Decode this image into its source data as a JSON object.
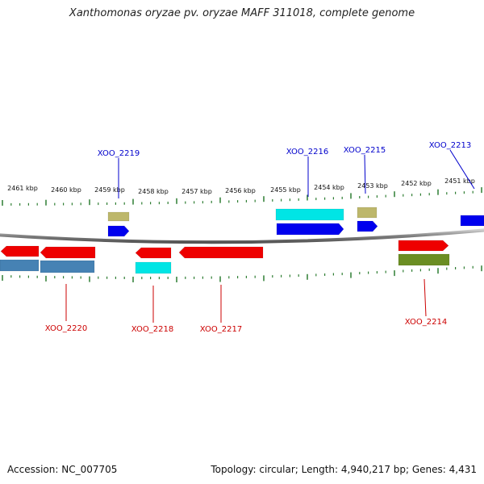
{
  "title": "Xanthomonas oryzae pv. oryzae MAFF 311018, complete genome",
  "footer": {
    "accession": "Accession: NC_007705",
    "summary": "Topology: circular; Length: 4,940,217 bp; Genes: 4,431"
  },
  "colors": {
    "backbone": "#7f7f7f",
    "tick": "#2e7d32",
    "upper_label": "#0000cc",
    "lower_label": "#cc0000"
  },
  "kbp_labels": [
    "2461 kbp",
    "2460 kbp",
    "2459 kbp",
    "2458 kbp",
    "2457 kbp",
    "2456 kbp",
    "2455 kbp",
    "2454 kbp",
    "2453 kbp",
    "2452 kbp",
    "2451 kbp"
  ],
  "upper_labels": [
    "XOO_2219",
    "XOO_2216",
    "XOO_2215",
    "XOO_2213"
  ],
  "lower_labels": [
    "XOO_2220",
    "XOO_2218",
    "XOO_2217",
    "XOO_2214"
  ],
  "features": {
    "upper": [
      {
        "color": "#bdb76b",
        "kind": "box"
      },
      {
        "color": "#0000ee",
        "kind": "arrow-right"
      },
      {
        "color": "#00e5e5",
        "kind": "box"
      },
      {
        "color": "#0000ee",
        "kind": "arrow-right"
      },
      {
        "color": "#bdb76b",
        "kind": "box"
      },
      {
        "color": "#0000ee",
        "kind": "arrow-right"
      },
      {
        "color": "#0000ee",
        "kind": "box"
      }
    ],
    "lower": [
      {
        "color": "#ee0000",
        "kind": "arrow-left"
      },
      {
        "color": "#ee0000",
        "kind": "arrow-left"
      },
      {
        "color": "#4682b4",
        "kind": "box"
      },
      {
        "color": "#4682b4",
        "kind": "box"
      },
      {
        "color": "#ee0000",
        "kind": "arrow-left"
      },
      {
        "color": "#00e5e5",
        "kind": "box"
      },
      {
        "color": "#ee0000",
        "kind": "arrow-left"
      },
      {
        "color": "#ee0000",
        "kind": "arrow-right"
      },
      {
        "color": "#6b8e23",
        "kind": "box"
      }
    ]
  }
}
